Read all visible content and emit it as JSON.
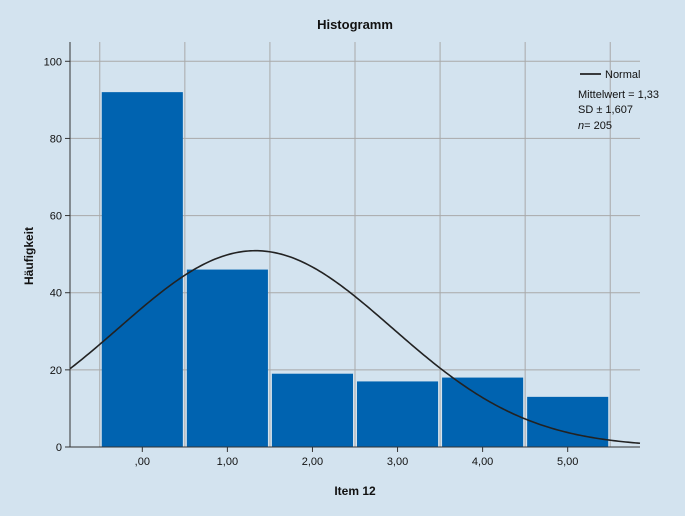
{
  "chart_data": {
    "type": "bar",
    "title": "Histogramm",
    "xlabel": "Item 12",
    "ylabel": "Häufigkeit",
    "categories": [
      ",00",
      "1,00",
      "2,00",
      "3,00",
      "4,00",
      "5,00"
    ],
    "x_values": [
      0,
      1,
      2,
      3,
      4,
      5
    ],
    "values": [
      92,
      46,
      19,
      17,
      18,
      13
    ],
    "ylim": [
      0,
      105
    ],
    "xlim": [
      -0.85,
      5.85
    ],
    "yticks": [
      0,
      20,
      40,
      60,
      80,
      100
    ],
    "grid": true,
    "bar_color": "#0063b0",
    "normal_curve": {
      "label": "Normal",
      "mean": 1.33,
      "sd": 1.607,
      "n": 205,
      "bin_width": 1,
      "color": "#222222"
    },
    "legend": {
      "position": "top-right",
      "mean_label": "Mittelwert = 1,33",
      "sd_label": "SD ± 1,607",
      "n_prefix": "n",
      "n_suffix": "= 205"
    }
  }
}
